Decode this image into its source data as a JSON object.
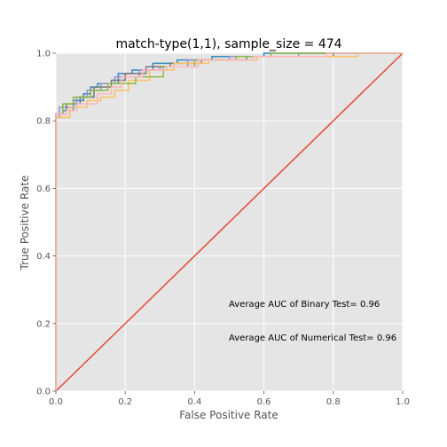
{
  "chart_data": {
    "type": "line",
    "title": "match-type(1,1), sample_size =  474",
    "xlabel": "False Positive Rate",
    "ylabel": "True Positive Rate",
    "xlim": [
      0.0,
      1.0
    ],
    "ylim": [
      0.0,
      1.0
    ],
    "xticks": [
      "0.0",
      "0.2",
      "0.4",
      "0.6",
      "0.8",
      "1.0"
    ],
    "yticks": [
      "0.0",
      "0.2",
      "0.4",
      "0.6",
      "0.8",
      "1.0"
    ],
    "grid": true,
    "legend": "lower-right (empty)",
    "annotations": [
      {
        "text": "Average AUC of Binary Test= 0.96",
        "x": 0.5,
        "y": 0.26
      },
      {
        "text": "Average AUC of Numerical Test= 0.96",
        "x": 0.5,
        "y": 0.16
      }
    ],
    "series": [
      {
        "color": "#E24A33",
        "x": [
          0.0,
          1.0
        ],
        "y": [
          0.0,
          1.0
        ]
      },
      {
        "color": "#348ABD",
        "x": [
          0.0,
          0.0,
          0.02,
          0.02,
          0.05,
          0.05,
          0.08,
          0.08,
          0.1,
          0.1,
          0.12,
          0.12,
          0.18,
          0.18,
          0.22,
          0.22,
          0.28,
          0.28,
          0.35,
          0.35,
          0.45,
          0.45,
          0.6,
          0.6,
          0.85,
          0.85,
          1.0
        ],
        "y": [
          0.0,
          0.82,
          0.82,
          0.83,
          0.83,
          0.86,
          0.86,
          0.88,
          0.88,
          0.9,
          0.9,
          0.91,
          0.91,
          0.94,
          0.94,
          0.95,
          0.95,
          0.97,
          0.97,
          0.98,
          0.98,
          0.99,
          0.99,
          1.0,
          1.0,
          1.0,
          1.0
        ]
      },
      {
        "color": "#988ED5",
        "x": [
          0.0,
          0.0,
          0.01,
          0.01,
          0.06,
          0.06,
          0.09,
          0.09,
          0.13,
          0.13,
          0.17,
          0.17,
          0.24,
          0.24,
          0.3,
          0.3,
          0.38,
          0.38,
          0.5,
          0.5,
          0.7,
          0.7,
          1.0
        ],
        "y": [
          0.0,
          0.81,
          0.81,
          0.84,
          0.84,
          0.87,
          0.87,
          0.89,
          0.89,
          0.91,
          0.91,
          0.93,
          0.93,
          0.95,
          0.95,
          0.96,
          0.96,
          0.98,
          0.98,
          0.99,
          0.99,
          1.0,
          1.0
        ]
      },
      {
        "color": "#777777",
        "x": [
          0.0,
          0.0,
          0.03,
          0.03,
          0.07,
          0.07,
          0.11,
          0.11,
          0.16,
          0.16,
          0.2,
          0.2,
          0.26,
          0.26,
          0.33,
          0.33,
          0.42,
          0.42,
          0.55,
          0.55,
          0.8,
          0.8,
          1.0
        ],
        "y": [
          0.0,
          0.82,
          0.82,
          0.85,
          0.85,
          0.87,
          0.87,
          0.9,
          0.9,
          0.92,
          0.92,
          0.94,
          0.94,
          0.96,
          0.96,
          0.97,
          0.97,
          0.98,
          0.98,
          0.99,
          0.99,
          1.0,
          1.0
        ]
      },
      {
        "color": "#FBC15E",
        "x": [
          0.0,
          0.0,
          0.04,
          0.04,
          0.09,
          0.09,
          0.13,
          0.13,
          0.17,
          0.17,
          0.21,
          0.21,
          0.27,
          0.27,
          0.34,
          0.34,
          0.44,
          0.44,
          0.58,
          0.58,
          0.87,
          0.87,
          1.0
        ],
        "y": [
          0.0,
          0.81,
          0.81,
          0.84,
          0.84,
          0.86,
          0.86,
          0.87,
          0.87,
          0.89,
          0.89,
          0.92,
          0.92,
          0.95,
          0.95,
          0.97,
          0.97,
          0.98,
          0.98,
          0.99,
          0.99,
          1.0,
          1.0
        ]
      },
      {
        "color": "#8EBA42",
        "x": [
          0.0,
          0.0,
          0.02,
          0.02,
          0.05,
          0.05,
          0.1,
          0.1,
          0.15,
          0.15,
          0.23,
          0.23,
          0.31,
          0.31,
          0.4,
          0.4,
          0.52,
          0.52,
          0.62,
          0.62,
          1.0
        ],
        "y": [
          0.0,
          0.82,
          0.82,
          0.85,
          0.85,
          0.87,
          0.87,
          0.89,
          0.89,
          0.91,
          0.91,
          0.93,
          0.93,
          0.96,
          0.96,
          0.98,
          0.98,
          0.99,
          0.99,
          1.0,
          1.0
        ]
      },
      {
        "color": "#FFB5B8",
        "x": [
          0.0,
          0.0,
          0.03,
          0.03,
          0.06,
          0.06,
          0.12,
          0.12,
          0.16,
          0.16,
          0.19,
          0.19,
          0.25,
          0.25,
          0.32,
          0.32,
          0.41,
          0.41,
          0.57,
          0.57,
          0.78,
          0.78,
          1.0
        ],
        "y": [
          0.0,
          0.82,
          0.82,
          0.83,
          0.83,
          0.85,
          0.85,
          0.88,
          0.88,
          0.9,
          0.9,
          0.93,
          0.93,
          0.95,
          0.95,
          0.96,
          0.96,
          0.98,
          0.98,
          0.99,
          0.99,
          1.0,
          1.0
        ]
      }
    ]
  }
}
